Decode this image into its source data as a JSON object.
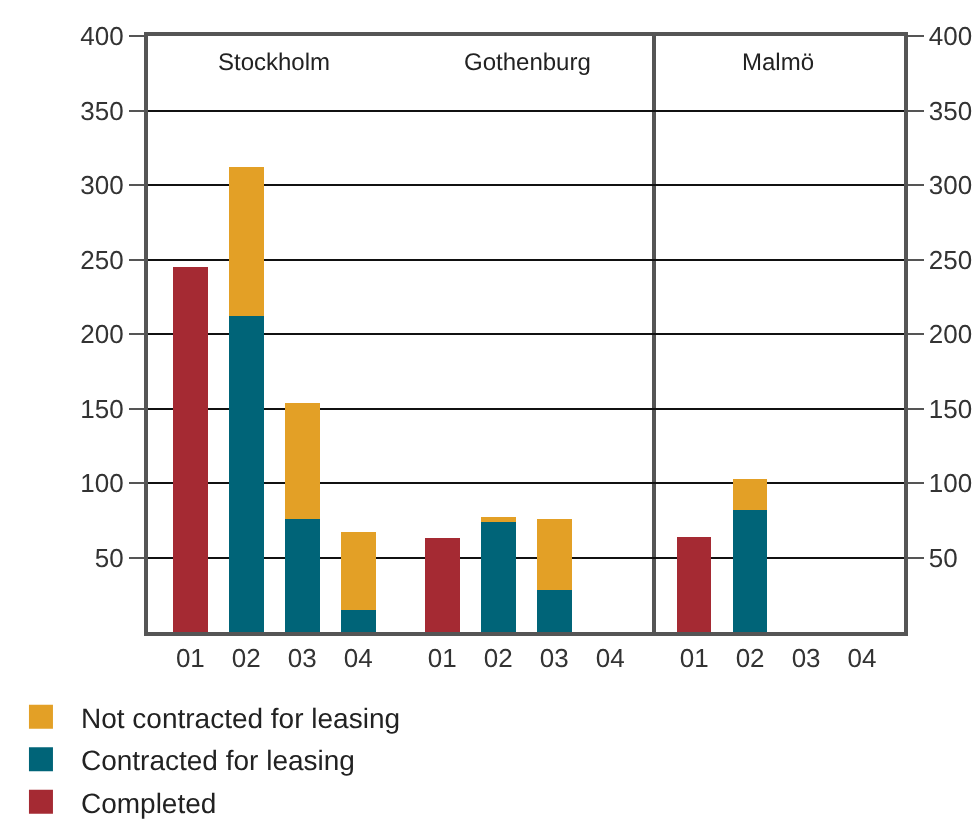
{
  "chart_data": [
    {
      "type": "bar",
      "title": "Stockholm",
      "stacked": true,
      "categories": [
        "01",
        "02",
        "03",
        "04"
      ],
      "ylim": [
        0,
        400
      ],
      "yticks": [
        50,
        100,
        150,
        200,
        250,
        300,
        350,
        400
      ],
      "grid": "y",
      "legend": "bottom",
      "series": [
        {
          "name": "Completed",
          "color": "#a52a33",
          "values": [
            245,
            0,
            0,
            0
          ]
        },
        {
          "name": "Contracted for leasing",
          "color": "#006478",
          "values": [
            0,
            212,
            76,
            15
          ]
        },
        {
          "name": "Not contracted for leasing",
          "color": "#e3a026",
          "values": [
            0,
            100,
            78,
            52
          ]
        }
      ]
    },
    {
      "type": "bar",
      "title": "Gothenburg",
      "stacked": true,
      "categories": [
        "01",
        "02",
        "03",
        "04"
      ],
      "ylim": [
        0,
        400
      ],
      "yticks": [
        50,
        100,
        150,
        200,
        250,
        300,
        350,
        400
      ],
      "grid": "y",
      "tick_labels": "x",
      "series": [
        {
          "color": "#a52a33",
          "values": [
            63,
            0,
            0,
            0
          ]
        },
        {
          "color": "#006478",
          "values": [
            0,
            74,
            28,
            0
          ]
        },
        {
          "color": "#e3a026",
          "values": [
            0,
            3,
            48,
            0
          ]
        }
      ]
    },
    {
      "type": "bar",
      "title": "Malmö",
      "stacked": true,
      "categories": [
        "01",
        "02",
        "03",
        "04"
      ],
      "ylim": [
        0,
        400
      ],
      "yticks": [
        50,
        100,
        150,
        200,
        250,
        300,
        350,
        400
      ],
      "grid": "y",
      "series": [
        {
          "color": "#a52a33",
          "values": [
            64,
            0,
            0,
            0
          ]
        },
        {
          "color": "#006478",
          "values": [
            0,
            82,
            0,
            0
          ]
        },
        {
          "color": "#e3a026",
          "values": [
            0,
            21,
            0,
            0
          ]
        }
      ]
    }
  ]
}
